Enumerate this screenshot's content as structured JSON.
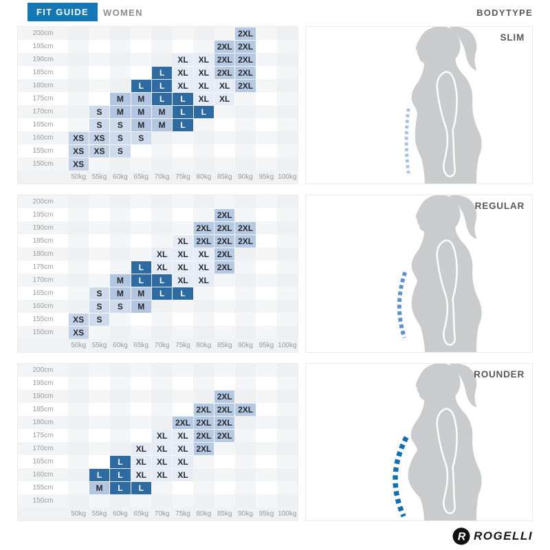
{
  "header": {
    "fit_guide": "FIT GUIDE",
    "gender": "WOMEN",
    "bodytype": "BODYTYPE"
  },
  "footer": {
    "brand": "ROGELLI"
  },
  "colors": {
    "brand_blue": "#1478b7",
    "silhouette_gray": "#c9cbcd",
    "sizes": {
      "XS": {
        "bg": "#c5d3e8",
        "fg": "#26272a"
      },
      "S": {
        "bg": "#cedbed",
        "fg": "#26272a"
      },
      "M": {
        "bg": "#b2c6e1",
        "fg": "#26272a"
      },
      "L": {
        "bg": "#2e6ba3",
        "fg": "#ffffff"
      },
      "XL": {
        "bg": "#e5ecf6",
        "fg": "#26272a"
      },
      "2XL": {
        "bg": "#b6c9e3",
        "fg": "#26272a"
      }
    },
    "dash": {
      "slim": "#a9c0e2",
      "regular": "#5e90cf",
      "rounder": "#0f6fb1"
    }
  },
  "chart_data": [
    {
      "type": "heatmap",
      "bodytype": "slim",
      "title": "SLIM",
      "xlabel": "weight",
      "ylabel": "height",
      "x": [
        "50kg",
        "55kg",
        "60kg",
        "65kg",
        "70kg",
        "75kg",
        "80kg",
        "85kg",
        "90kg",
        "95kg",
        "100kg"
      ],
      "y": [
        "200cm",
        "195cm",
        "190cm",
        "185cm",
        "180cm",
        "175cm",
        "170cm",
        "165cm",
        "160cm",
        "155cm",
        "150cm"
      ],
      "cells": [
        [
          "200cm",
          "90kg",
          "2XL"
        ],
        [
          "195cm",
          "85kg",
          "2XL"
        ],
        [
          "195cm",
          "90kg",
          "2XL"
        ],
        [
          "190cm",
          "75kg",
          "XL"
        ],
        [
          "190cm",
          "80kg",
          "XL"
        ],
        [
          "190cm",
          "85kg",
          "2XL"
        ],
        [
          "190cm",
          "90kg",
          "2XL"
        ],
        [
          "185cm",
          "70kg",
          "L"
        ],
        [
          "185cm",
          "75kg",
          "XL"
        ],
        [
          "185cm",
          "80kg",
          "XL"
        ],
        [
          "185cm",
          "85kg",
          "2XL"
        ],
        [
          "185cm",
          "90kg",
          "2XL"
        ],
        [
          "180cm",
          "65kg",
          "L"
        ],
        [
          "180cm",
          "70kg",
          "L"
        ],
        [
          "180cm",
          "75kg",
          "XL"
        ],
        [
          "180cm",
          "80kg",
          "XL"
        ],
        [
          "180cm",
          "85kg",
          "XL"
        ],
        [
          "180cm",
          "90kg",
          "2XL"
        ],
        [
          "175cm",
          "60kg",
          "M"
        ],
        [
          "175cm",
          "65kg",
          "M"
        ],
        [
          "175cm",
          "70kg",
          "L"
        ],
        [
          "175cm",
          "75kg",
          "L"
        ],
        [
          "175cm",
          "80kg",
          "XL"
        ],
        [
          "175cm",
          "85kg",
          "XL"
        ],
        [
          "170cm",
          "55kg",
          "S"
        ],
        [
          "170cm",
          "60kg",
          "M"
        ],
        [
          "170cm",
          "65kg",
          "M"
        ],
        [
          "170cm",
          "70kg",
          "M"
        ],
        [
          "170cm",
          "75kg",
          "L"
        ],
        [
          "170cm",
          "80kg",
          "L"
        ],
        [
          "165cm",
          "55kg",
          "S"
        ],
        [
          "165cm",
          "60kg",
          "S"
        ],
        [
          "165cm",
          "65kg",
          "M"
        ],
        [
          "165cm",
          "70kg",
          "M"
        ],
        [
          "165cm",
          "75kg",
          "L"
        ],
        [
          "160cm",
          "50kg",
          "XS"
        ],
        [
          "160cm",
          "55kg",
          "XS"
        ],
        [
          "160cm",
          "60kg",
          "S"
        ],
        [
          "160cm",
          "65kg",
          "S"
        ],
        [
          "155cm",
          "50kg",
          "XS"
        ],
        [
          "155cm",
          "55kg",
          "XS"
        ],
        [
          "155cm",
          "60kg",
          "S"
        ],
        [
          "150cm",
          "50kg",
          "XS"
        ]
      ]
    },
    {
      "type": "heatmap",
      "bodytype": "regular",
      "title": "REGULAR",
      "xlabel": "weight",
      "ylabel": "height",
      "x": [
        "50kg",
        "55kg",
        "60kg",
        "65kg",
        "70kg",
        "75kg",
        "80kg",
        "85kg",
        "90kg",
        "95kg",
        "100kg"
      ],
      "y": [
        "200cm",
        "195cm",
        "190cm",
        "185cm",
        "180cm",
        "175cm",
        "170cm",
        "165cm",
        "160cm",
        "155cm",
        "150cm"
      ],
      "cells": [
        [
          "195cm",
          "85kg",
          "2XL"
        ],
        [
          "190cm",
          "80kg",
          "2XL"
        ],
        [
          "190cm",
          "85kg",
          "2XL"
        ],
        [
          "190cm",
          "90kg",
          "2XL"
        ],
        [
          "185cm",
          "75kg",
          "XL"
        ],
        [
          "185cm",
          "80kg",
          "2XL"
        ],
        [
          "185cm",
          "85kg",
          "2XL"
        ],
        [
          "185cm",
          "90kg",
          "2XL"
        ],
        [
          "180cm",
          "70kg",
          "XL"
        ],
        [
          "180cm",
          "75kg",
          "XL"
        ],
        [
          "180cm",
          "80kg",
          "XL"
        ],
        [
          "180cm",
          "85kg",
          "2XL"
        ],
        [
          "175cm",
          "65kg",
          "L"
        ],
        [
          "175cm",
          "70kg",
          "XL"
        ],
        [
          "175cm",
          "75kg",
          "XL"
        ],
        [
          "175cm",
          "80kg",
          "XL"
        ],
        [
          "175cm",
          "85kg",
          "2XL"
        ],
        [
          "170cm",
          "60kg",
          "M"
        ],
        [
          "170cm",
          "65kg",
          "L"
        ],
        [
          "170cm",
          "70kg",
          "L"
        ],
        [
          "170cm",
          "75kg",
          "XL"
        ],
        [
          "170cm",
          "80kg",
          "XL"
        ],
        [
          "165cm",
          "55kg",
          "S"
        ],
        [
          "165cm",
          "60kg",
          "M"
        ],
        [
          "165cm",
          "65kg",
          "M"
        ],
        [
          "165cm",
          "70kg",
          "L"
        ],
        [
          "165cm",
          "75kg",
          "L"
        ],
        [
          "160cm",
          "55kg",
          "S"
        ],
        [
          "160cm",
          "60kg",
          "S"
        ],
        [
          "160cm",
          "65kg",
          "M"
        ],
        [
          "155cm",
          "50kg",
          "XS"
        ],
        [
          "155cm",
          "55kg",
          "S"
        ],
        [
          "150cm",
          "50kg",
          "XS"
        ]
      ]
    },
    {
      "type": "heatmap",
      "bodytype": "rounder",
      "title": "ROUNDER",
      "xlabel": "weight",
      "ylabel": "height",
      "x": [
        "50kg",
        "55kg",
        "60kg",
        "65kg",
        "70kg",
        "75kg",
        "80kg",
        "85kg",
        "90kg",
        "95kg",
        "100kg"
      ],
      "y": [
        "200cm",
        "195cm",
        "190cm",
        "185cm",
        "180cm",
        "175cm",
        "170cm",
        "165cm",
        "160cm",
        "155cm",
        "150cm"
      ],
      "cells": [
        [
          "190cm",
          "85kg",
          "2XL"
        ],
        [
          "185cm",
          "80kg",
          "2XL"
        ],
        [
          "185cm",
          "85kg",
          "2XL"
        ],
        [
          "185cm",
          "90kg",
          "2XL"
        ],
        [
          "180cm",
          "75kg",
          "2XL"
        ],
        [
          "180cm",
          "80kg",
          "2XL"
        ],
        [
          "180cm",
          "85kg",
          "2XL"
        ],
        [
          "175cm",
          "70kg",
          "XL"
        ],
        [
          "175cm",
          "75kg",
          "XL"
        ],
        [
          "175cm",
          "80kg",
          "2XL"
        ],
        [
          "175cm",
          "85kg",
          "2XL"
        ],
        [
          "170cm",
          "65kg",
          "XL"
        ],
        [
          "170cm",
          "70kg",
          "XL"
        ],
        [
          "170cm",
          "75kg",
          "XL"
        ],
        [
          "170cm",
          "80kg",
          "2XL"
        ],
        [
          "165cm",
          "60kg",
          "L"
        ],
        [
          "165cm",
          "65kg",
          "XL"
        ],
        [
          "165cm",
          "70kg",
          "XL"
        ],
        [
          "165cm",
          "75kg",
          "XL"
        ],
        [
          "160cm",
          "55kg",
          "L"
        ],
        [
          "160cm",
          "60kg",
          "L"
        ],
        [
          "160cm",
          "65kg",
          "XL"
        ],
        [
          "160cm",
          "70kg",
          "XL"
        ],
        [
          "160cm",
          "75kg",
          "XL"
        ],
        [
          "155cm",
          "55kg",
          "M"
        ],
        [
          "155cm",
          "60kg",
          "L"
        ],
        [
          "155cm",
          "65kg",
          "L"
        ]
      ]
    }
  ]
}
